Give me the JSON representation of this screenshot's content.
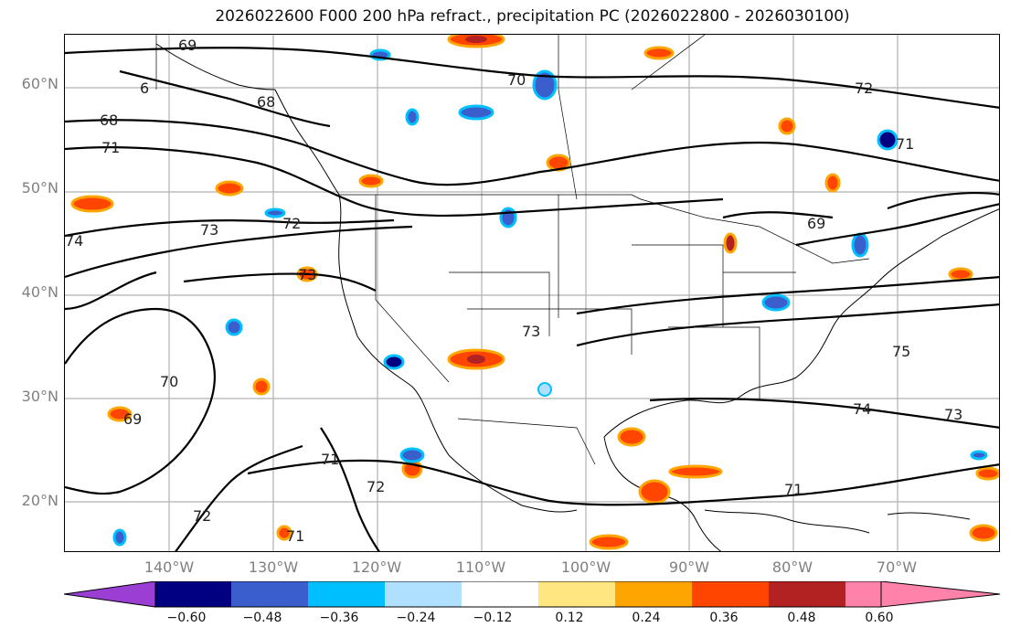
{
  "title": "2026022600 F000 200 hPa refract., precipitation PC (2026022800 - 2026030100)",
  "latitude_labels": [
    "60°N",
    "50°N",
    "40°N",
    "30°N",
    "20°N"
  ],
  "longitude_labels": [
    "140°W",
    "130°W",
    "120°W",
    "110°W",
    "100°W",
    "90°W",
    "80°W",
    "70°W"
  ],
  "colorbar": {
    "tick_labels": [
      "−0.60",
      "−0.48",
      "−0.36",
      "−0.24",
      "−0.12",
      "0.12",
      "0.24",
      "0.36",
      "0.48",
      "0.60"
    ],
    "colors": [
      "#9b3fd4",
      "#000080",
      "#3a5fcd",
      "#00bfff",
      "#b0e0ff",
      "#ffffff",
      "#ffe680",
      "#ffa500",
      "#ff4500",
      "#b22222",
      "#ff82ab"
    ]
  },
  "contour_labels": [
    "69",
    "70",
    "72",
    "6",
    "68",
    "68",
    "71",
    "74",
    "73",
    "72",
    "73",
    "75",
    "74",
    "73",
    "71",
    "70",
    "69",
    "71",
    "72",
    "71",
    "71",
    "72",
    "73",
    "69"
  ],
  "colors": {
    "positive_core": "#ff4500",
    "negative_core": "#3a5fcd",
    "contour": "#000000",
    "grid": "#b0b0b0"
  }
}
